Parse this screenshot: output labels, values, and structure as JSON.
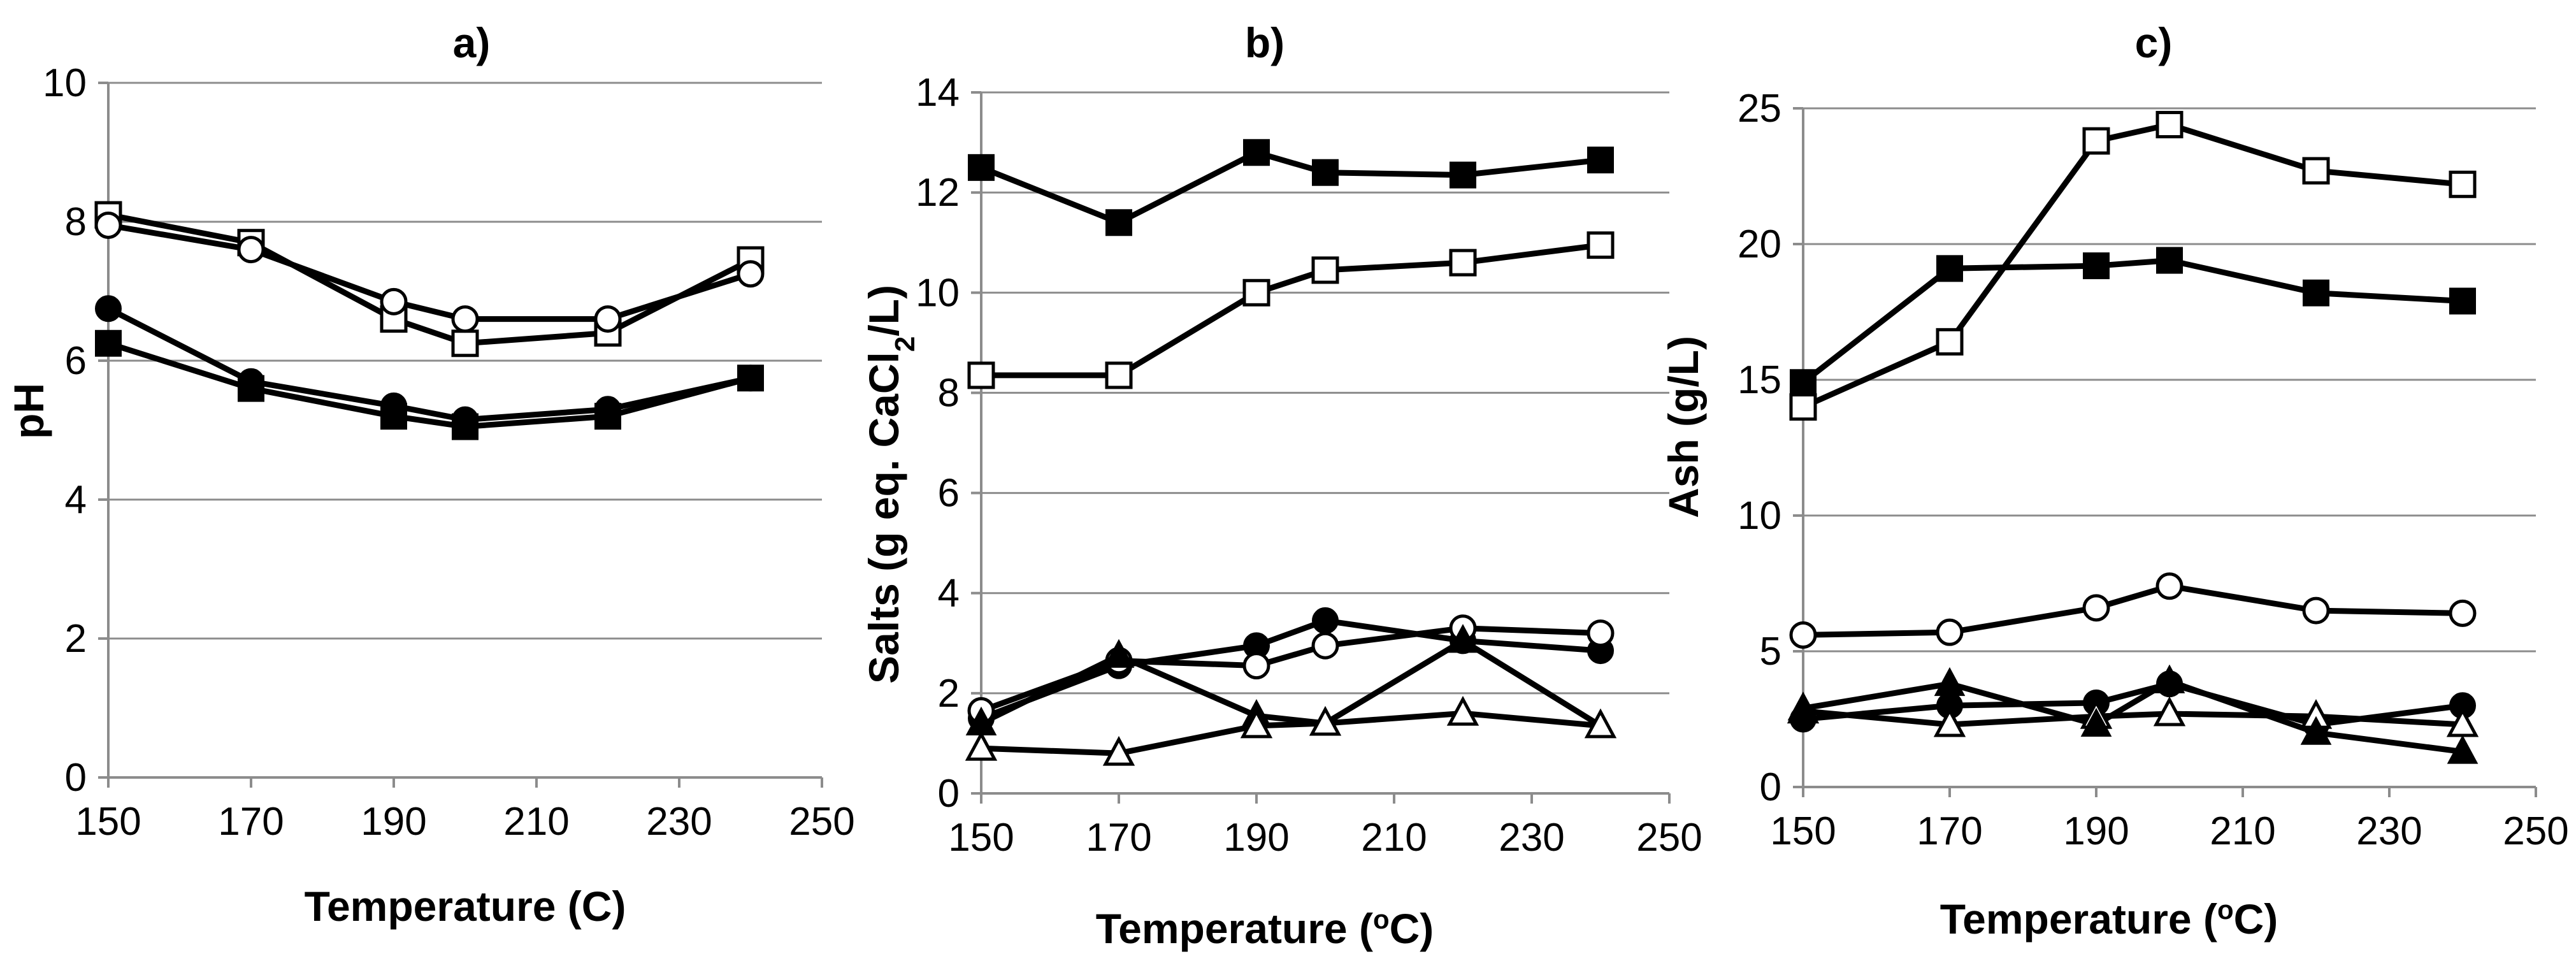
{
  "chart_data": [
    {
      "type": "line",
      "panel": "a",
      "title": "a)",
      "xlabel": "Temperature (C)",
      "ylabel": "pH",
      "xlim": [
        150,
        250
      ],
      "ylim": [
        0,
        10
      ],
      "xticks": [
        150,
        170,
        190,
        210,
        230,
        250
      ],
      "yticks": [
        0,
        2,
        4,
        6,
        8,
        10
      ],
      "grid": true,
      "x": [
        150,
        170,
        190,
        200,
        220,
        240
      ],
      "series": [
        {
          "name": "open-square",
          "marker": "square",
          "filled": false,
          "values": [
            8.1,
            7.7,
            6.6,
            6.25,
            6.4,
            7.45
          ]
        },
        {
          "name": "open-circle",
          "marker": "circle",
          "filled": false,
          "values": [
            7.95,
            7.6,
            6.85,
            6.6,
            6.6,
            7.25
          ]
        },
        {
          "name": "filled-circle",
          "marker": "circle",
          "filled": true,
          "values": [
            6.75,
            5.7,
            5.35,
            5.15,
            5.3,
            5.75
          ]
        },
        {
          "name": "filled-square",
          "marker": "square",
          "filled": true,
          "values": [
            6.25,
            5.6,
            5.2,
            5.05,
            5.2,
            5.75
          ]
        }
      ]
    },
    {
      "type": "line",
      "panel": "b",
      "title": "b)",
      "xlabel": "Temperature (°C)",
      "ylabel": "Salts (g eq. CaCl₂/L)",
      "xlim": [
        150,
        250
      ],
      "ylim": [
        0,
        14
      ],
      "xticks": [
        150,
        170,
        190,
        210,
        230,
        250
      ],
      "yticks": [
        0,
        2,
        4,
        6,
        8,
        10,
        12,
        14
      ],
      "grid": true,
      "x": [
        150,
        170,
        190,
        200,
        220,
        240
      ],
      "series": [
        {
          "name": "filled-square",
          "marker": "square",
          "filled": true,
          "values": [
            12.5,
            11.4,
            12.8,
            12.4,
            12.35,
            12.65
          ]
        },
        {
          "name": "open-square",
          "marker": "square",
          "filled": false,
          "values": [
            8.35,
            8.35,
            10.0,
            10.45,
            10.6,
            10.95
          ]
        },
        {
          "name": "filled-circle",
          "marker": "circle",
          "filled": true,
          "values": [
            1.5,
            2.55,
            2.95,
            3.45,
            3.05,
            2.85
          ]
        },
        {
          "name": "open-circle",
          "marker": "circle",
          "filled": false,
          "values": [
            1.65,
            2.65,
            2.55,
            2.95,
            3.3,
            3.2
          ]
        },
        {
          "name": "filled-triangle",
          "marker": "triangle",
          "filled": true,
          "values": [
            1.4,
            2.75,
            1.55,
            1.4,
            3.05,
            1.35
          ]
        },
        {
          "name": "open-triangle",
          "marker": "triangle",
          "filled": false,
          "values": [
            0.9,
            0.8,
            1.35,
            1.4,
            1.6,
            1.35
          ]
        }
      ]
    },
    {
      "type": "line",
      "panel": "c",
      "title": "c)",
      "xlabel": "Temperature (°C)",
      "ylabel": "Ash (g/L)",
      "xlim": [
        150,
        250
      ],
      "ylim": [
        0,
        25
      ],
      "xticks": [
        150,
        170,
        190,
        210,
        230,
        250
      ],
      "yticks": [
        0,
        5,
        10,
        15,
        20,
        25
      ],
      "grid": true,
      "x": [
        150,
        170,
        190,
        200,
        220,
        240
      ],
      "series": [
        {
          "name": "open-square",
          "marker": "square",
          "filled": false,
          "values": [
            14.0,
            16.4,
            23.8,
            24.4,
            22.7,
            22.2
          ]
        },
        {
          "name": "filled-square",
          "marker": "square",
          "filled": true,
          "values": [
            14.9,
            19.1,
            19.2,
            19.4,
            18.2,
            17.9
          ]
        },
        {
          "name": "open-circle",
          "marker": "circle",
          "filled": false,
          "values": [
            5.6,
            5.7,
            6.6,
            7.4,
            6.5,
            6.4
          ]
        },
        {
          "name": "filled-circle",
          "marker": "circle",
          "filled": true,
          "values": [
            2.5,
            3.0,
            3.1,
            3.8,
            2.3,
            3.0
          ]
        },
        {
          "name": "open-triangle",
          "marker": "triangle",
          "filled": false,
          "values": [
            2.8,
            2.3,
            2.6,
            2.7,
            2.6,
            2.3
          ]
        },
        {
          "name": "filled-triangle",
          "marker": "triangle",
          "filled": true,
          "values": [
            2.9,
            3.8,
            2.3,
            3.9,
            2.0,
            1.3
          ]
        }
      ]
    }
  ]
}
